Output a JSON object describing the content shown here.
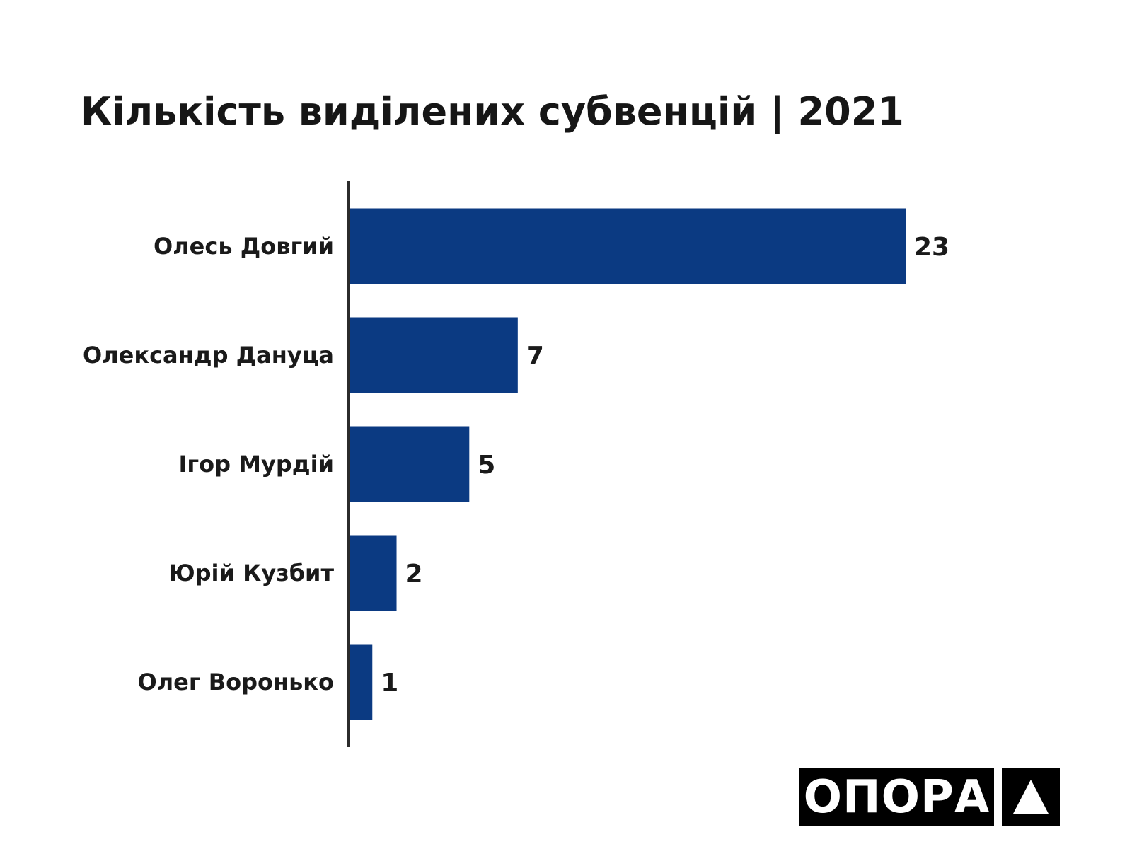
{
  "colors": {
    "bar": "#0b3a82",
    "axis": "#2b2b2b",
    "text": "#1a1a1a",
    "logo_bg": "#000000",
    "logo_fg": "#ffffff"
  },
  "chart_data": {
    "type": "bar",
    "orientation": "horizontal",
    "title": "Кількість виділених субвенцій | 2021",
    "categories": [
      "Олесь Довгий",
      "Олександр Дануца",
      "Ігор Мурдій",
      "Юрій Кузбит",
      "Олег Воронько"
    ],
    "values": [
      23,
      7,
      5,
      2,
      1
    ],
    "value_labels": [
      "23",
      "7",
      "5",
      "2",
      "1"
    ],
    "xlabel": "",
    "ylabel": "",
    "xlim": [
      0,
      23
    ],
    "grid": false,
    "legend": "none"
  },
  "branding": {
    "logo_text": "ОПОРА",
    "logo_icon": "triangle-icon"
  }
}
